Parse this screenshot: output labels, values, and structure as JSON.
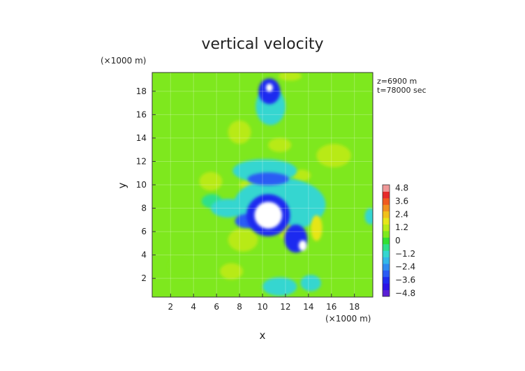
{
  "chart_data": {
    "type": "heatmap",
    "title": "vertical velocity",
    "xlabel": "x",
    "ylabel": "y",
    "x_unit": "(×1000 m)",
    "y_unit": "(×1000 m)",
    "annotations": [
      "z=6900 m",
      "t=78000 sec"
    ],
    "xlim": [
      0.4,
      19.6
    ],
    "ylim": [
      0.4,
      19.6
    ],
    "xticks": [
      2,
      4,
      6,
      8,
      10,
      12,
      14,
      16,
      18
    ],
    "yticks": [
      2,
      4,
      6,
      8,
      10,
      12,
      14,
      16,
      18
    ],
    "grid": true,
    "background_value": 0.3,
    "colorbar": {
      "levels": [
        -4.8,
        -4.2,
        -3.6,
        -3.0,
        -2.4,
        -1.8,
        -1.2,
        -0.6,
        0,
        0.6,
        1.2,
        1.8,
        2.4,
        3.0,
        3.6,
        4.2,
        4.8
      ],
      "colors": [
        "#5a1fd6",
        "#2a14e6",
        "#1f2cf0",
        "#2a5cf4",
        "#2f8cf0",
        "#33b8e8",
        "#35d6d0",
        "#2ee08a",
        "#33e033",
        "#7ee81e",
        "#b8ea16",
        "#e6e619",
        "#f0c01a",
        "#f09020",
        "#f05a20",
        "#e62a2a",
        "#f09898"
      ],
      "tick_labels": [
        "4.8",
        "3.6",
        "2.4",
        "1.2",
        "0",
        "−1.2",
        "−2.4",
        "−3.6",
        "−4.8"
      ],
      "tick_values": [
        4.8,
        3.6,
        2.4,
        1.2,
        0,
        -1.2,
        -2.4,
        -3.6,
        -4.8
      ],
      "over_color": "#ffffff"
    },
    "features": [
      {
        "x": 10.5,
        "y": 7.4,
        "rx": 1.9,
        "ry": 1.8,
        "value": -3.6
      },
      {
        "x": 10.5,
        "y": 7.4,
        "rx": 1.2,
        "ry": 1.15,
        "value": -5.5
      },
      {
        "x": 12.9,
        "y": 5.4,
        "rx": 1.0,
        "ry": 1.2,
        "value": -3.8
      },
      {
        "x": 13.5,
        "y": 4.8,
        "rx": 0.35,
        "ry": 0.45,
        "value": -5.5
      },
      {
        "x": 8.6,
        "y": 6.9,
        "rx": 1.0,
        "ry": 0.6,
        "value": -3.2
      },
      {
        "x": 10.6,
        "y": 18.0,
        "rx": 0.95,
        "ry": 1.1,
        "value": -3.6
      },
      {
        "x": 10.6,
        "y": 18.3,
        "rx": 0.3,
        "ry": 0.35,
        "value": -5.5
      },
      {
        "x": 10.5,
        "y": 10.5,
        "rx": 1.8,
        "ry": 0.55,
        "value": -3.0
      },
      {
        "x": 10.2,
        "y": 11.2,
        "rx": 2.8,
        "ry": 1.0,
        "value": -1.3
      },
      {
        "x": 11.5,
        "y": 8.3,
        "rx": 4.0,
        "ry": 2.3,
        "value": -1.2
      },
      {
        "x": 10.7,
        "y": 16.7,
        "rx": 1.3,
        "ry": 1.6,
        "value": -1.5
      },
      {
        "x": 11.5,
        "y": 1.3,
        "rx": 1.5,
        "ry": 0.8,
        "value": -1.2
      },
      {
        "x": 14.2,
        "y": 1.6,
        "rx": 0.9,
        "ry": 0.7,
        "value": -1.0
      },
      {
        "x": 7.0,
        "y": 8.0,
        "rx": 1.5,
        "ry": 0.8,
        "value": -0.9
      },
      {
        "x": 5.6,
        "y": 8.6,
        "rx": 0.9,
        "ry": 0.6,
        "value": -0.8
      },
      {
        "x": 19.4,
        "y": 7.3,
        "rx": 0.5,
        "ry": 0.7,
        "value": -1.2
      },
      {
        "x": 14.7,
        "y": 6.3,
        "rx": 0.5,
        "ry": 1.1,
        "value": 1.5
      },
      {
        "x": 12.0,
        "y": 6.0,
        "rx": 0.6,
        "ry": 0.7,
        "value": 1.3
      },
      {
        "x": 8.3,
        "y": 5.3,
        "rx": 1.3,
        "ry": 1.0,
        "value": 1.2
      },
      {
        "x": 11.5,
        "y": 13.4,
        "rx": 1.0,
        "ry": 0.6,
        "value": 1.3
      },
      {
        "x": 8.0,
        "y": 14.5,
        "rx": 1.0,
        "ry": 1.0,
        "value": 1.0
      },
      {
        "x": 16.2,
        "y": 12.5,
        "rx": 1.5,
        "ry": 1.0,
        "value": 0.9
      },
      {
        "x": 5.5,
        "y": 10.3,
        "rx": 1.0,
        "ry": 0.8,
        "value": 0.9
      },
      {
        "x": 12.4,
        "y": 19.3,
        "rx": 1.0,
        "ry": 0.4,
        "value": 1.0
      },
      {
        "x": 7.3,
        "y": 2.6,
        "rx": 1.0,
        "ry": 0.7,
        "value": 0.9
      },
      {
        "x": 3.0,
        "y": 3.0,
        "rx": 1.2,
        "ry": 1.0,
        "value": 0.8
      },
      {
        "x": 9.0,
        "y": 10.0,
        "rx": 1.0,
        "ry": 0.5,
        "value": 1.0
      },
      {
        "x": 13.4,
        "y": 10.8,
        "rx": 0.8,
        "ry": 0.5,
        "value": 1.1
      }
    ]
  }
}
